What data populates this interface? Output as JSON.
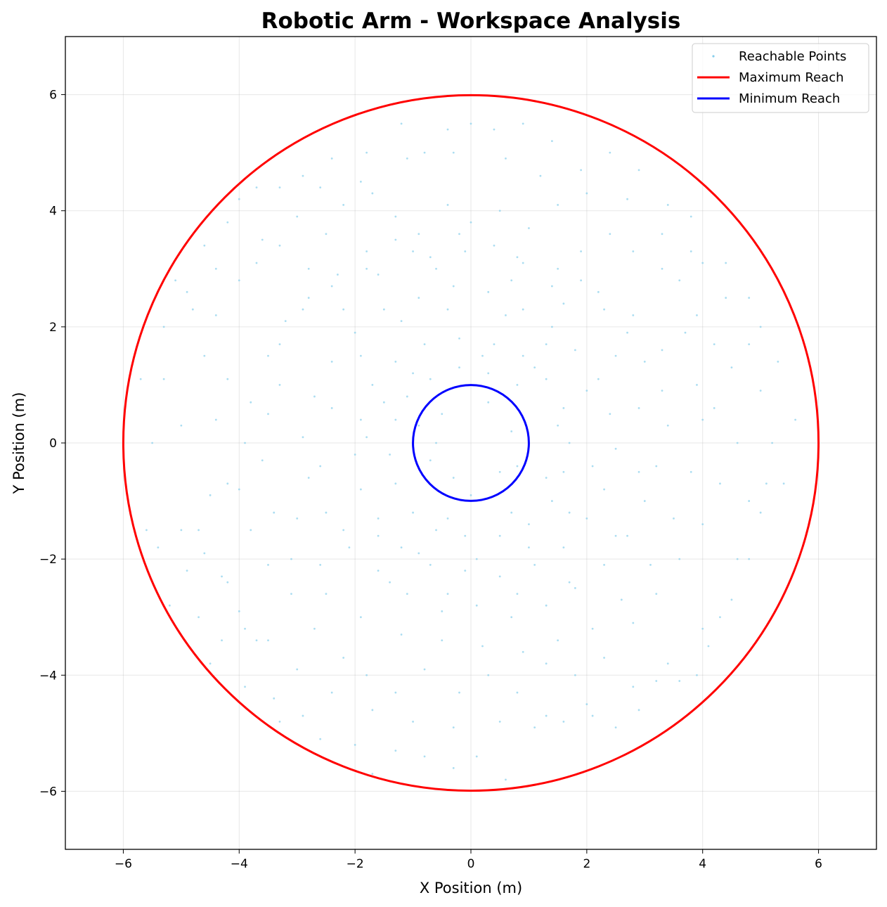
{
  "chart_data": {
    "type": "scatter",
    "title": "Robotic Arm - Workspace Analysis",
    "xlabel": "X Position (m)",
    "ylabel": "Y Position (m)",
    "xlim": [
      -7,
      7
    ],
    "ylim": [
      -7,
      7
    ],
    "xticks": [
      -6,
      -4,
      -2,
      0,
      2,
      4,
      6
    ],
    "yticks": [
      -6,
      -4,
      -2,
      0,
      2,
      4,
      6
    ],
    "xtick_labels": [
      "−6",
      "−4",
      "−2",
      "0",
      "2",
      "4",
      "6"
    ],
    "ytick_labels": [
      "−6",
      "−4",
      "−2",
      "0",
      "2",
      "4",
      "6"
    ],
    "grid": true,
    "legend_position": "top-right",
    "series": [
      {
        "name": "Reachable Points",
        "kind": "scatter",
        "color": "#87ceeb",
        "points": [
          [
            -5.7,
            1.1
          ],
          [
            -5.3,
            1.1
          ],
          [
            -5.5,
            0.0
          ],
          [
            -5.0,
            0.3
          ],
          [
            -5.6,
            -1.5
          ],
          [
            -5.4,
            -1.8
          ],
          [
            -5.0,
            -1.5
          ],
          [
            -4.9,
            -2.2
          ],
          [
            -4.6,
            -1.9
          ],
          [
            -4.9,
            2.6
          ],
          [
            -4.8,
            2.3
          ],
          [
            -4.4,
            2.2
          ],
          [
            -4.6,
            1.5
          ],
          [
            -4.2,
            1.1
          ],
          [
            -4.4,
            0.4
          ],
          [
            -4.2,
            -0.7
          ],
          [
            -4.5,
            -0.9
          ],
          [
            -4.2,
            -2.4
          ],
          [
            -3.9,
            -3.2
          ],
          [
            -4.3,
            -3.4
          ],
          [
            -3.7,
            -3.4
          ],
          [
            -3.9,
            -4.2
          ],
          [
            -3.4,
            -4.4
          ],
          [
            -3.3,
            -4.8
          ],
          [
            -2.9,
            -4.7
          ],
          [
            -2.6,
            -5.1
          ],
          [
            -2.0,
            -5.2
          ],
          [
            -1.7,
            -5.7
          ],
          [
            -1.3,
            -5.3
          ],
          [
            -0.8,
            -5.4
          ],
          [
            -0.3,
            -5.6
          ],
          [
            0.1,
            -5.4
          ],
          [
            0.6,
            -5.8
          ],
          [
            1.1,
            -4.9
          ],
          [
            1.6,
            -4.8
          ],
          [
            2.1,
            -4.7
          ],
          [
            2.5,
            -4.9
          ],
          [
            2.9,
            -4.6
          ],
          [
            3.2,
            -4.1
          ],
          [
            3.6,
            -4.1
          ],
          [
            3.9,
            -4.0
          ],
          [
            4.1,
            -3.5
          ],
          [
            4.3,
            -3.0
          ],
          [
            4.6,
            -2.0
          ],
          [
            4.8,
            -1.0
          ],
          [
            5.1,
            -0.7
          ],
          [
            5.4,
            -0.7
          ],
          [
            5.6,
            0.4
          ],
          [
            5.3,
            1.4
          ],
          [
            5.0,
            2.0
          ],
          [
            4.8,
            2.5
          ],
          [
            4.4,
            3.1
          ],
          [
            4.0,
            3.1
          ],
          [
            3.8,
            3.9
          ],
          [
            3.4,
            4.1
          ],
          [
            2.9,
            4.7
          ],
          [
            2.4,
            5.0
          ],
          [
            1.9,
            4.7
          ],
          [
            1.4,
            5.2
          ],
          [
            0.9,
            5.5
          ],
          [
            0.4,
            5.4
          ],
          [
            0.0,
            5.5
          ],
          [
            -0.4,
            5.4
          ],
          [
            -0.8,
            5.0
          ],
          [
            -1.2,
            5.5
          ],
          [
            -1.8,
            5.0
          ],
          [
            -2.4,
            4.9
          ],
          [
            -2.9,
            4.6
          ],
          [
            -3.3,
            4.4
          ],
          [
            -3.7,
            4.4
          ],
          [
            -4.0,
            4.2
          ],
          [
            -4.2,
            3.8
          ],
          [
            -4.4,
            3.0
          ],
          [
            -4.0,
            2.8
          ],
          [
            -3.7,
            3.1
          ],
          [
            -3.3,
            3.4
          ],
          [
            -2.8,
            3.0
          ],
          [
            -2.5,
            3.6
          ],
          [
            -2.2,
            4.1
          ],
          [
            -1.7,
            4.3
          ],
          [
            -1.3,
            3.9
          ],
          [
            -0.9,
            3.6
          ],
          [
            -0.4,
            4.1
          ],
          [
            0.0,
            3.8
          ],
          [
            0.5,
            4.0
          ],
          [
            1.0,
            3.7
          ],
          [
            1.5,
            4.1
          ],
          [
            1.9,
            3.3
          ],
          [
            2.4,
            3.6
          ],
          [
            2.8,
            3.3
          ],
          [
            3.3,
            3.0
          ],
          [
            3.6,
            2.8
          ],
          [
            3.9,
            2.2
          ],
          [
            4.2,
            1.7
          ],
          [
            4.5,
            1.3
          ],
          [
            4.2,
            0.6
          ],
          [
            4.6,
            0.0
          ],
          [
            4.3,
            -0.7
          ],
          [
            4.0,
            -1.4
          ],
          [
            3.6,
            -2.0
          ],
          [
            3.2,
            -2.6
          ],
          [
            2.8,
            -3.1
          ],
          [
            2.3,
            -3.7
          ],
          [
            1.8,
            -4.0
          ],
          [
            1.3,
            -3.8
          ],
          [
            0.8,
            -4.3
          ],
          [
            0.3,
            -4.0
          ],
          [
            -0.2,
            -4.3
          ],
          [
            -0.8,
            -3.9
          ],
          [
            -1.3,
            -4.3
          ],
          [
            -1.8,
            -4.0
          ],
          [
            -2.2,
            -3.7
          ],
          [
            -2.7,
            -3.2
          ],
          [
            -3.1,
            -2.6
          ],
          [
            -3.5,
            -2.1
          ],
          [
            -3.8,
            -1.5
          ],
          [
            -4.0,
            -0.8
          ],
          [
            -3.9,
            0.0
          ],
          [
            -3.8,
            0.7
          ],
          [
            -3.5,
            1.5
          ],
          [
            -3.2,
            2.1
          ],
          [
            -2.8,
            2.5
          ],
          [
            -2.3,
            2.9
          ],
          [
            -1.8,
            3.3
          ],
          [
            -1.3,
            3.5
          ],
          [
            -0.7,
            3.2
          ],
          [
            -0.2,
            3.6
          ],
          [
            0.4,
            3.4
          ],
          [
            0.9,
            3.1
          ],
          [
            1.4,
            2.7
          ],
          [
            1.9,
            2.8
          ],
          [
            2.3,
            2.3
          ],
          [
            2.7,
            1.9
          ],
          [
            3.0,
            1.4
          ],
          [
            3.3,
            0.9
          ],
          [
            3.4,
            0.3
          ],
          [
            3.2,
            -0.4
          ],
          [
            3.0,
            -1.0
          ],
          [
            2.7,
            -1.6
          ],
          [
            2.3,
            -2.1
          ],
          [
            1.8,
            -2.5
          ],
          [
            1.3,
            -2.8
          ],
          [
            0.7,
            -3.0
          ],
          [
            0.1,
            -2.8
          ],
          [
            -0.5,
            -2.9
          ],
          [
            -1.1,
            -2.6
          ],
          [
            -1.6,
            -2.2
          ],
          [
            -2.1,
            -1.8
          ],
          [
            -2.5,
            -1.2
          ],
          [
            -2.8,
            -0.6
          ],
          [
            -2.9,
            0.1
          ],
          [
            -2.7,
            0.8
          ],
          [
            -2.4,
            1.4
          ],
          [
            -2.0,
            1.9
          ],
          [
            -1.5,
            2.3
          ],
          [
            -0.9,
            2.5
          ],
          [
            -0.3,
            2.7
          ],
          [
            0.3,
            2.6
          ],
          [
            0.9,
            2.3
          ],
          [
            1.4,
            2.0
          ],
          [
            1.8,
            1.6
          ],
          [
            2.2,
            1.1
          ],
          [
            2.4,
            0.5
          ],
          [
            2.5,
            -0.1
          ],
          [
            2.3,
            -0.8
          ],
          [
            2.0,
            -1.3
          ],
          [
            1.6,
            -1.8
          ],
          [
            1.1,
            -2.1
          ],
          [
            0.5,
            -2.3
          ],
          [
            -0.1,
            -2.2
          ],
          [
            -0.7,
            -2.1
          ],
          [
            -1.2,
            -1.8
          ],
          [
            -1.6,
            -1.3
          ],
          [
            -1.9,
            -0.8
          ],
          [
            -2.0,
            -0.2
          ],
          [
            -1.9,
            0.4
          ],
          [
            -1.7,
            1.0
          ],
          [
            -1.3,
            1.4
          ],
          [
            -0.8,
            1.7
          ],
          [
            -0.2,
            1.8
          ],
          [
            0.4,
            1.7
          ],
          [
            0.9,
            1.5
          ],
          [
            1.3,
            1.1
          ],
          [
            1.6,
            0.6
          ],
          [
            1.7,
            0.0
          ],
          [
            1.6,
            -0.5
          ],
          [
            1.4,
            -1.0
          ],
          [
            1.0,
            -1.4
          ],
          [
            0.5,
            -1.6
          ],
          [
            -0.1,
            -1.6
          ],
          [
            -0.6,
            -1.5
          ],
          [
            -1.0,
            -1.2
          ],
          [
            -1.3,
            -0.7
          ],
          [
            -1.4,
            -0.2
          ],
          [
            -1.3,
            0.4
          ],
          [
            -1.1,
            0.8
          ],
          [
            -0.7,
            1.1
          ],
          [
            -0.2,
            1.3
          ],
          [
            0.3,
            1.2
          ],
          [
            0.8,
            1.0
          ],
          [
            -0.9,
            0.3
          ],
          [
            -0.7,
            -0.3
          ],
          [
            -0.5,
            0.5
          ],
          [
            -0.3,
            -0.6
          ],
          [
            0.0,
            -0.9
          ],
          [
            0.3,
            0.7
          ],
          [
            0.5,
            -0.5
          ],
          [
            0.7,
            0.2
          ],
          [
            0.8,
            -0.4
          ],
          [
            -0.6,
            0.0
          ],
          [
            -5.2,
            -2.8
          ],
          [
            -4.7,
            -3.0
          ],
          [
            -4.5,
            -3.8
          ],
          [
            -5.3,
            2.0
          ],
          [
            -5.1,
            2.8
          ],
          [
            -4.6,
            3.4
          ],
          [
            -3.6,
            3.5
          ],
          [
            -3.0,
            3.9
          ],
          [
            -2.6,
            4.4
          ],
          [
            -1.9,
            4.5
          ],
          [
            -1.1,
            4.9
          ],
          [
            -0.3,
            5.0
          ],
          [
            0.6,
            4.9
          ],
          [
            1.2,
            4.6
          ],
          [
            2.0,
            4.3
          ],
          [
            2.7,
            4.2
          ],
          [
            3.3,
            3.6
          ],
          [
            3.8,
            3.3
          ],
          [
            4.4,
            2.5
          ],
          [
            4.8,
            1.7
          ],
          [
            5.0,
            0.9
          ],
          [
            5.2,
            0.0
          ],
          [
            5.0,
            -1.2
          ],
          [
            4.8,
            -2.0
          ],
          [
            4.5,
            -2.7
          ],
          [
            4.0,
            -3.2
          ],
          [
            3.4,
            -3.8
          ],
          [
            2.8,
            -4.2
          ],
          [
            2.0,
            -4.5
          ],
          [
            1.3,
            -4.7
          ],
          [
            0.5,
            -4.8
          ],
          [
            -0.3,
            -4.9
          ],
          [
            -1.0,
            -4.8
          ],
          [
            -1.7,
            -4.6
          ],
          [
            -2.4,
            -4.3
          ],
          [
            -3.0,
            -3.9
          ],
          [
            -3.5,
            -3.4
          ],
          [
            -4.0,
            -2.9
          ],
          [
            -4.3,
            -2.3
          ],
          [
            -4.7,
            -1.5
          ],
          [
            -3.3,
            1.0
          ],
          [
            -3.0,
            -1.3
          ],
          [
            -2.6,
            -2.1
          ],
          [
            -2.2,
            2.3
          ],
          [
            -1.6,
            2.9
          ],
          [
            -0.6,
            3.0
          ],
          [
            0.7,
            2.8
          ],
          [
            1.6,
            2.4
          ],
          [
            2.5,
            1.5
          ],
          [
            2.9,
            0.6
          ],
          [
            2.9,
            -0.5
          ],
          [
            2.5,
            -1.6
          ],
          [
            1.7,
            -2.4
          ],
          [
            0.8,
            -2.6
          ],
          [
            -0.4,
            -2.6
          ],
          [
            -1.4,
            -2.4
          ],
          [
            -2.2,
            -1.5
          ],
          [
            -2.6,
            -0.4
          ],
          [
            -2.4,
            0.6
          ],
          [
            -1.9,
            1.5
          ],
          [
            -1.2,
            2.1
          ],
          [
            -0.4,
            2.3
          ],
          [
            0.6,
            2.2
          ],
          [
            1.3,
            1.7
          ],
          [
            2.0,
            0.9
          ],
          [
            2.1,
            -0.4
          ],
          [
            1.7,
            -1.2
          ],
          [
            1.0,
            -1.8
          ],
          [
            0.1,
            -2.0
          ],
          [
            -0.9,
            -1.9
          ],
          [
            -1.6,
            -1.6
          ],
          [
            -1.8,
            0.1
          ],
          [
            -1.5,
            0.7
          ],
          [
            -1.0,
            1.2
          ],
          [
            0.2,
            1.5
          ],
          [
            1.1,
            1.3
          ],
          [
            1.5,
            0.3
          ],
          [
            1.3,
            -0.6
          ],
          [
            0.7,
            -1.2
          ],
          [
            -0.4,
            -1.3
          ],
          [
            3.7,
            1.9
          ],
          [
            3.9,
            1.0
          ],
          [
            4.0,
            0.4
          ],
          [
            3.8,
            -0.5
          ],
          [
            3.5,
            -1.3
          ],
          [
            3.1,
            -2.1
          ],
          [
            2.6,
            -2.7
          ],
          [
            2.1,
            -3.2
          ],
          [
            1.5,
            -3.4
          ],
          [
            0.9,
            -3.6
          ],
          [
            0.2,
            -3.5
          ],
          [
            -0.5,
            -3.4
          ],
          [
            -1.2,
            -3.3
          ],
          [
            -1.9,
            -3.0
          ],
          [
            -2.5,
            -2.6
          ],
          [
            -3.1,
            -2.0
          ],
          [
            -3.4,
            -1.2
          ],
          [
            -3.6,
            -0.3
          ],
          [
            -3.5,
            0.5
          ],
          [
            -3.3,
            1.7
          ],
          [
            -2.9,
            2.3
          ],
          [
            -2.4,
            2.7
          ],
          [
            -1.8,
            3.0
          ],
          [
            -1.0,
            3.3
          ],
          [
            -0.1,
            3.3
          ],
          [
            0.8,
            3.2
          ],
          [
            1.5,
            3.0
          ],
          [
            2.2,
            2.6
          ],
          [
            2.8,
            2.2
          ],
          [
            3.3,
            1.6
          ]
        ]
      },
      {
        "name": "Maximum Reach",
        "kind": "circle",
        "radius": 6,
        "color": "#ff0000"
      },
      {
        "name": "Minimum Reach",
        "kind": "circle",
        "radius": 1,
        "color": "#0000ff"
      }
    ]
  }
}
